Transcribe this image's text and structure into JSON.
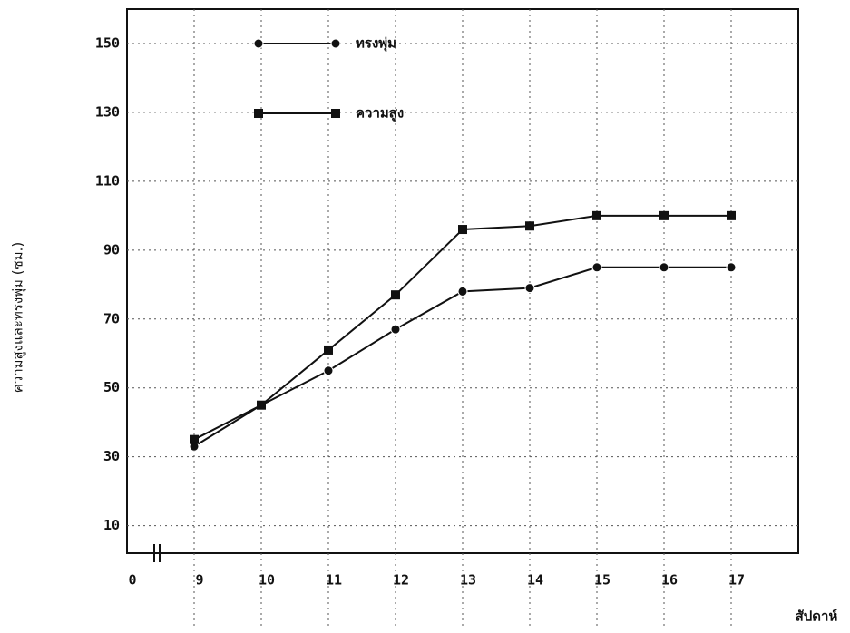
{
  "chart_data": {
    "type": "line",
    "y_label": "ความสูงและทรงพุ่ม (ซม.)",
    "x_label": "สัปดาห์",
    "categories": [
      "0",
      "9",
      "10",
      "11",
      "12",
      "13",
      "14",
      "15",
      "16",
      "17"
    ],
    "series": [
      {
        "name": "ทรงพุ่ม",
        "color": "#111111",
        "values": [
          null,
          33,
          45,
          55,
          67,
          78,
          79,
          85,
          85,
          85
        ]
      },
      {
        "name": "ความสูง",
        "color": "#111111",
        "values": [
          null,
          35,
          45,
          61,
          77,
          96,
          97,
          100,
          100,
          100
        ]
      }
    ],
    "ylim": [
      2,
      160
    ],
    "yticks": [
      10,
      30,
      50,
      70,
      90,
      110,
      130,
      150
    ],
    "grid": true
  }
}
